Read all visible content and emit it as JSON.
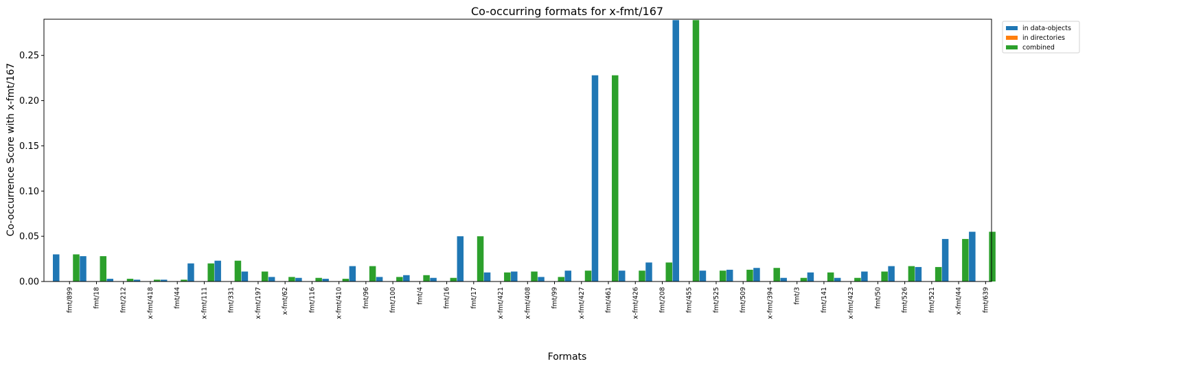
{
  "chart_data": {
    "type": "bar",
    "title": "Co-occurring formats for x-fmt/167",
    "xlabel": "Formats",
    "ylabel": "Co-occurrence Score with x-fmt/167",
    "ylim": [
      0,
      0.29
    ],
    "yticks": [
      "0.00",
      "0.05",
      "0.10",
      "0.15",
      "0.20",
      "0.25"
    ],
    "grid": false,
    "legend_position": "outside top-right",
    "categories": [
      "fmt/899",
      "fmt/18",
      "fmt/212",
      "x-fmt/418",
      "fmt/44",
      "x-fmt/111",
      "fmt/331",
      "x-fmt/197",
      "x-fmt/62",
      "fmt/116",
      "x-fmt/410",
      "fmt/96",
      "fmt/100",
      "fmt/4",
      "fmt/16",
      "fmt/17",
      "x-fmt/421",
      "x-fmt/408",
      "fmt/99",
      "x-fmt/427",
      "fmt/461",
      "x-fmt/426",
      "fmt/208",
      "fmt/455",
      "fmt/525",
      "fmt/509",
      "x-fmt/394",
      "fmt/3",
      "fmt/141",
      "x-fmt/423",
      "fmt/50",
      "fmt/526",
      "fmt/521",
      "x-fmt/44",
      "fmt/639"
    ],
    "series": [
      {
        "name": "in data-objects",
        "color": "#1f77b4",
        "values": [
          0.03,
          0.028,
          0.003,
          0.002,
          0.002,
          0.02,
          0.023,
          0.011,
          0.005,
          0.004,
          0.003,
          0.017,
          0.005,
          0.007,
          0.004,
          0.05,
          0.01,
          0.011,
          0.005,
          0.012,
          0.228,
          0.012,
          0.021,
          0.289,
          0.012,
          0.013,
          0.015,
          0.004,
          0.01,
          0.004,
          0.011,
          0.017,
          0.016,
          0.047,
          0.055
        ]
      },
      {
        "name": "in directories",
        "color": "#ff7f0e",
        "values": [
          0,
          0,
          0,
          0,
          0,
          0,
          0,
          0,
          0,
          0,
          0,
          0,
          0,
          0,
          0,
          0,
          0,
          0,
          0,
          0,
          0,
          0,
          0,
          0,
          0,
          0,
          0,
          0,
          0,
          0,
          0,
          0,
          0,
          0,
          0
        ]
      },
      {
        "name": "combined",
        "color": "#2ca02c",
        "values": [
          0.03,
          0.028,
          0.003,
          0.002,
          0.002,
          0.02,
          0.023,
          0.011,
          0.005,
          0.004,
          0.003,
          0.017,
          0.005,
          0.007,
          0.004,
          0.05,
          0.01,
          0.011,
          0.005,
          0.012,
          0.228,
          0.012,
          0.021,
          0.289,
          0.012,
          0.013,
          0.015,
          0.004,
          0.01,
          0.004,
          0.011,
          0.017,
          0.016,
          0.047,
          0.055
        ]
      }
    ]
  }
}
